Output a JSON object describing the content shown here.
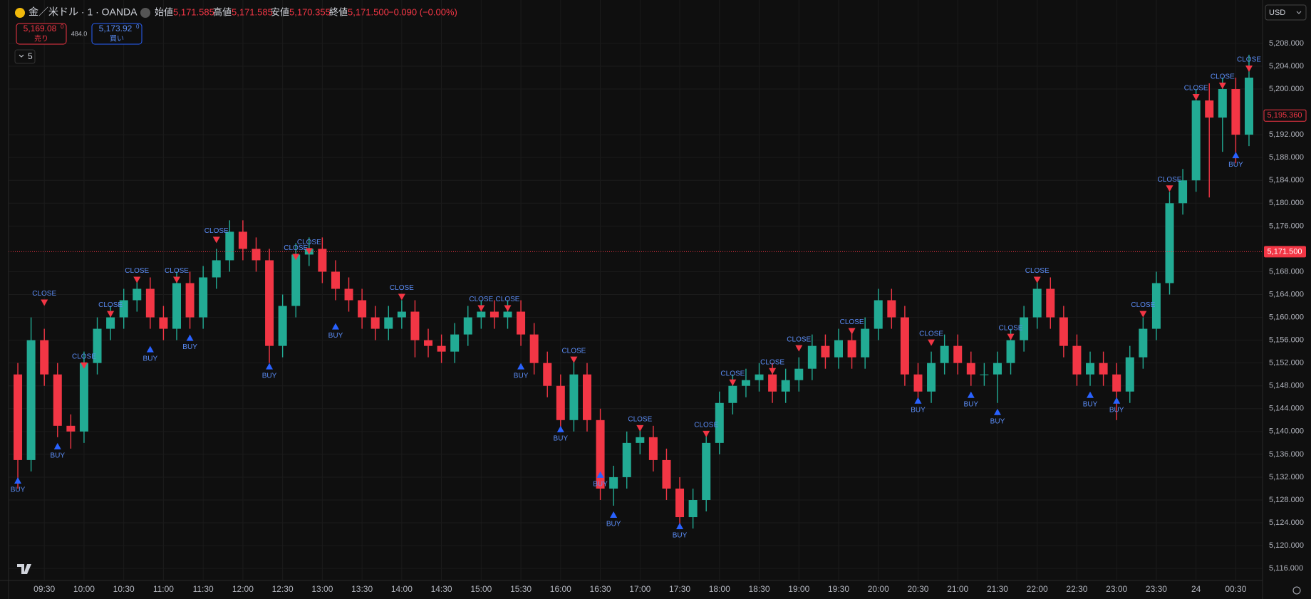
{
  "header": {
    "symbol": "金／米ドル · 1 · OANDA",
    "open_label": "始値",
    "open": "5,171.585",
    "high_label": "高値",
    "high": "5,171.585",
    "low_label": "安値",
    "low": "5,170.355",
    "close_label": "終値",
    "close": "5,171.500",
    "change": "−0.090 (−0.00%)",
    "sell_price": "5,169.08",
    "sell_sup": "0",
    "sell_label": "売り",
    "spread": "484.0",
    "buy_price": "5,173.92",
    "buy_sup": "0",
    "buy_label": "買い",
    "interval_count": "5",
    "currency": "USD"
  },
  "chart_data": {
    "type": "candlestick",
    "x": [
      "09:10",
      "09:20",
      "09:30",
      "09:40",
      "09:50",
      "10:00",
      "10:10",
      "10:20",
      "10:30",
      "10:40",
      "10:50",
      "11:00",
      "11:10",
      "11:20",
      "11:30",
      "11:40",
      "11:50",
      "12:00",
      "12:10",
      "12:20",
      "12:30",
      "12:40",
      "12:50",
      "13:00",
      "13:10",
      "13:20",
      "13:30",
      "13:40",
      "13:50",
      "14:00",
      "14:10",
      "14:20",
      "14:30",
      "14:40",
      "14:50",
      "15:00",
      "15:10",
      "15:20",
      "15:30",
      "15:40",
      "15:50",
      "16:00",
      "16:10",
      "16:20",
      "16:30",
      "16:40",
      "16:50",
      "17:00",
      "17:10",
      "17:20",
      "17:30",
      "17:40",
      "17:50",
      "18:00",
      "18:10",
      "18:20",
      "18:30",
      "18:40",
      "18:50",
      "19:00",
      "19:10",
      "19:20",
      "19:30",
      "19:40",
      "19:50",
      "20:00",
      "20:10",
      "20:20",
      "20:30",
      "20:40",
      "20:50",
      "21:00",
      "21:10",
      "21:20",
      "21:30",
      "21:40",
      "21:50",
      "22:00",
      "22:10",
      "22:20",
      "22:30",
      "22:40",
      "22:50",
      "23:00",
      "23:10",
      "23:20",
      "23:30",
      "23:40",
      "23:50",
      "00:00",
      "00:10",
      "00:20",
      "00:30",
      "00:40"
    ],
    "open": [
      5150,
      5135,
      5156,
      5150,
      5141,
      5140,
      5152,
      5158,
      5160,
      5163,
      5165,
      5160,
      5158,
      5166,
      5160,
      5167,
      5170,
      5175,
      5172,
      5170,
      5155,
      5162,
      5171,
      5172,
      5168,
      5165,
      5163,
      5160,
      5158,
      5160,
      5161,
      5156,
      5155,
      5154,
      5157,
      5160,
      5161,
      5160,
      5161,
      5157,
      5152,
      5148,
      5142,
      5150,
      5142,
      5130,
      5132,
      5138,
      5139,
      5135,
      5130,
      5125,
      5128,
      5138,
      5145,
      5148,
      5149,
      5150,
      5147,
      5149,
      5151,
      5155,
      5153,
      5156,
      5153,
      5158,
      5163,
      5160,
      5150,
      5147,
      5152,
      5155,
      5152,
      5150,
      5150,
      5152,
      5156,
      5160,
      5165,
      5160,
      5155,
      5150,
      5152,
      5150,
      5147,
      5153,
      5158,
      5166,
      5180,
      5184,
      5198,
      5195,
      5200,
      5192
    ],
    "high": [
      5152,
      5160,
      5158,
      5152,
      5143,
      5154,
      5160,
      5162,
      5165,
      5167,
      5167,
      5162,
      5168,
      5168,
      5169,
      5172,
      5177,
      5177,
      5174,
      5172,
      5164,
      5173,
      5174,
      5174,
      5170,
      5167,
      5165,
      5162,
      5162,
      5163,
      5163,
      5158,
      5157,
      5159,
      5162,
      5163,
      5163,
      5163,
      5163,
      5159,
      5154,
      5150,
      5153,
      5152,
      5144,
      5134,
      5140,
      5141,
      5141,
      5137,
      5132,
      5130,
      5140,
      5147,
      5150,
      5151,
      5152,
      5152,
      5151,
      5153,
      5157,
      5157,
      5158,
      5158,
      5160,
      5165,
      5165,
      5162,
      5152,
      5154,
      5157,
      5157,
      5154,
      5152,
      5154,
      5158,
      5162,
      5167,
      5167,
      5162,
      5157,
      5154,
      5154,
      5152,
      5155,
      5160,
      5168,
      5182,
      5186,
      5200,
      5201,
      5202,
      5202,
      5206
    ],
    "low": [
      5130,
      5133,
      5148,
      5139,
      5137,
      5138,
      5150,
      5156,
      5158,
      5161,
      5158,
      5156,
      5156,
      5158,
      5158,
      5165,
      5168,
      5170,
      5168,
      5152,
      5153,
      5160,
      5169,
      5166,
      5163,
      5161,
      5158,
      5156,
      5156,
      5158,
      5153,
      5153,
      5152,
      5152,
      5155,
      5158,
      5158,
      5158,
      5155,
      5150,
      5146,
      5140,
      5140,
      5140,
      5128,
      5127,
      5130,
      5136,
      5133,
      5128,
      5123,
      5123,
      5126,
      5136,
      5143,
      5146,
      5147,
      5145,
      5145,
      5147,
      5149,
      5151,
      5151,
      5151,
      5151,
      5156,
      5158,
      5148,
      5145,
      5145,
      5150,
      5150,
      5148,
      5148,
      5145,
      5150,
      5154,
      5158,
      5158,
      5153,
      5148,
      5148,
      5148,
      5142,
      5145,
      5151,
      5156,
      5164,
      5178,
      5182,
      5181,
      5189,
      5187,
      5190
    ],
    "close": [
      5135,
      5156,
      5150,
      5141,
      5140,
      5152,
      5158,
      5160,
      5163,
      5165,
      5160,
      5158,
      5166,
      5160,
      5167,
      5170,
      5175,
      5172,
      5170,
      5155,
      5162,
      5171,
      5172,
      5168,
      5165,
      5163,
      5160,
      5158,
      5160,
      5161,
      5156,
      5155,
      5154,
      5157,
      5160,
      5161,
      5160,
      5161,
      5157,
      5152,
      5148,
      5142,
      5150,
      5142,
      5130,
      5132,
      5138,
      5139,
      5135,
      5130,
      5125,
      5128,
      5138,
      5145,
      5148,
      5149,
      5150,
      5147,
      5149,
      5151,
      5155,
      5153,
      5156,
      5153,
      5158,
      5163,
      5160,
      5150,
      5147,
      5152,
      5155,
      5152,
      5150,
      5150,
      5152,
      5156,
      5160,
      5165,
      5160,
      5155,
      5150,
      5152,
      5150,
      5147,
      5153,
      5158,
      5166,
      5180,
      5184,
      5198,
      5195,
      5200,
      5192,
      5202
    ],
    "up_color": "#22ab94",
    "down_color": "#f23645",
    "signals": {
      "x": [
        "09:10",
        "09:40",
        "10:50",
        "11:20",
        "12:20",
        "13:10",
        "15:30",
        "16:00",
        "16:30",
        "16:40",
        "17:30",
        "20:30",
        "21:10",
        "21:30",
        "22:40",
        "23:00",
        "00:30",
        "09:30",
        "10:00",
        "10:20",
        "10:40",
        "11:10",
        "11:40",
        "12:40",
        "12:50",
        "14:00",
        "15:00",
        "15:20",
        "16:10",
        "17:00",
        "17:50",
        "18:10",
        "18:40",
        "19:00",
        "19:40",
        "20:40",
        "21:40",
        "22:00",
        "23:20",
        "23:40",
        "00:00",
        "00:20",
        "00:40"
      ],
      "label": [
        "BUY",
        "BUY",
        "BUY",
        "BUY",
        "BUY",
        "BUY",
        "BUY",
        "BUY",
        "BUY",
        "BUY",
        "BUY",
        "BUY",
        "BUY",
        "BUY",
        "BUY",
        "BUY",
        "BUY",
        "CLOSE",
        "CLOSE",
        "CLOSE",
        "CLOSE",
        "CLOSE",
        "CLOSE",
        "CLOSE",
        "CLOSE",
        "CLOSE",
        "CLOSE",
        "CLOSE",
        "CLOSE",
        "CLOSE",
        "CLOSE",
        "CLOSE",
        "CLOSE",
        "CLOSE",
        "CLOSE",
        "CLOSE",
        "CLOSE",
        "CLOSE",
        "CLOSE",
        "CLOSE",
        "CLOSE",
        "CLOSE",
        "CLOSE"
      ],
      "price": [
        5132,
        5138,
        5155,
        5157,
        5152,
        5159,
        5152,
        5141,
        5133,
        5126,
        5124,
        5146,
        5147,
        5144,
        5147,
        5146,
        5189,
        5162,
        5151,
        5160,
        5166,
        5166,
        5173,
        5170,
        5171,
        5163,
        5161,
        5161,
        5152,
        5140,
        5139,
        5148,
        5150,
        5154,
        5157,
        5155,
        5156,
        5166,
        5160,
        5182,
        5198,
        5200,
        5203
      ]
    },
    "ylim": [
      5113.9,
      5215.6
    ],
    "yticks": [
      {
        "value": 5116,
        "label": "5,116.000"
      },
      {
        "value": 5120,
        "label": "5,120.000"
      },
      {
        "value": 5124,
        "label": "5,124.000"
      },
      {
        "value": 5128,
        "label": "5,128.000"
      },
      {
        "value": 5132,
        "label": "5,132.000"
      },
      {
        "value": 5136,
        "label": "5,136.000"
      },
      {
        "value": 5140,
        "label": "5,140.000"
      },
      {
        "value": 5144,
        "label": "5,144.000"
      },
      {
        "value": 5148,
        "label": "5,148.000"
      },
      {
        "value": 5152,
        "label": "5,152.000"
      },
      {
        "value": 5156,
        "label": "5,156.000"
      },
      {
        "value": 5160,
        "label": "5,160.000"
      },
      {
        "value": 5164,
        "label": "5,164.000"
      },
      {
        "value": 5168,
        "label": "5,168.000"
      },
      {
        "value": 5176,
        "label": "5,176.000"
      },
      {
        "value": 5180,
        "label": "5,180.000"
      },
      {
        "value": 5184,
        "label": "5,184.000"
      },
      {
        "value": 5188,
        "label": "5,188.000"
      },
      {
        "value": 5192,
        "label": "5,192.000"
      },
      {
        "value": 5200,
        "label": "5,200.000"
      },
      {
        "value": 5204,
        "label": "5,204.000"
      },
      {
        "value": 5208,
        "label": "5,208.000"
      }
    ],
    "xticks": [
      "09:30",
      "10:00",
      "10:30",
      "11:00",
      "11:30",
      "12:00",
      "12:30",
      "13:00",
      "13:30",
      "14:00",
      "14:30",
      "15:00",
      "15:30",
      "16:00",
      "16:30",
      "17:00",
      "17:30",
      "18:00",
      "18:30",
      "19:00",
      "19:30",
      "20:00",
      "20:30",
      "21:00",
      "21:30",
      "22:00",
      "22:30",
      "23:00",
      "23:30",
      {
        "value": "00:00",
        "label": "24"
      },
      "00:30"
    ],
    "last_price": {
      "value": 5171.5,
      "label": "5,171.500"
    },
    "mark_price": {
      "value": 5195.36,
      "label": "5,195.360"
    },
    "grid": true
  }
}
